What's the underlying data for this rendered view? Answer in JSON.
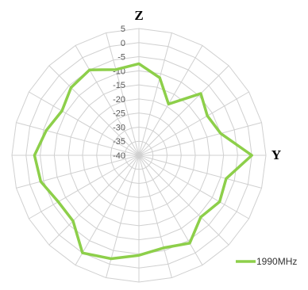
{
  "chart_data": {
    "type": "line",
    "subtype": "radar",
    "axis_titles": {
      "top": "Z",
      "right": "Y"
    },
    "r_ticks": [
      5,
      0,
      -5,
      -10,
      -15,
      -20,
      -25,
      -30,
      -35,
      -40
    ],
    "r_range": [
      -40,
      5
    ],
    "spokes": 24,
    "grid": true,
    "legend_position": "bottom-right",
    "colors": {
      "series": "#8dcf4a",
      "grid": "#d0d0d0",
      "tick_text": "#595959"
    },
    "series": [
      {
        "name": "1990MHz",
        "angles_deg": [
          0,
          15,
          30,
          45,
          60,
          75,
          90,
          105,
          120,
          135,
          150,
          165,
          180,
          195,
          210,
          225,
          240,
          255,
          270,
          285,
          300,
          315,
          330,
          345
        ],
        "values": [
          -7.5,
          -11.5,
          -19,
          -9,
          -12,
          -10,
          0,
          -8,
          -7,
          -9,
          -4,
          -6,
          -4.5,
          -2,
          0,
          -7,
          -7,
          -4,
          -3,
          -6,
          -8.5,
          -6,
          -5,
          -8.5
        ]
      }
    ]
  }
}
